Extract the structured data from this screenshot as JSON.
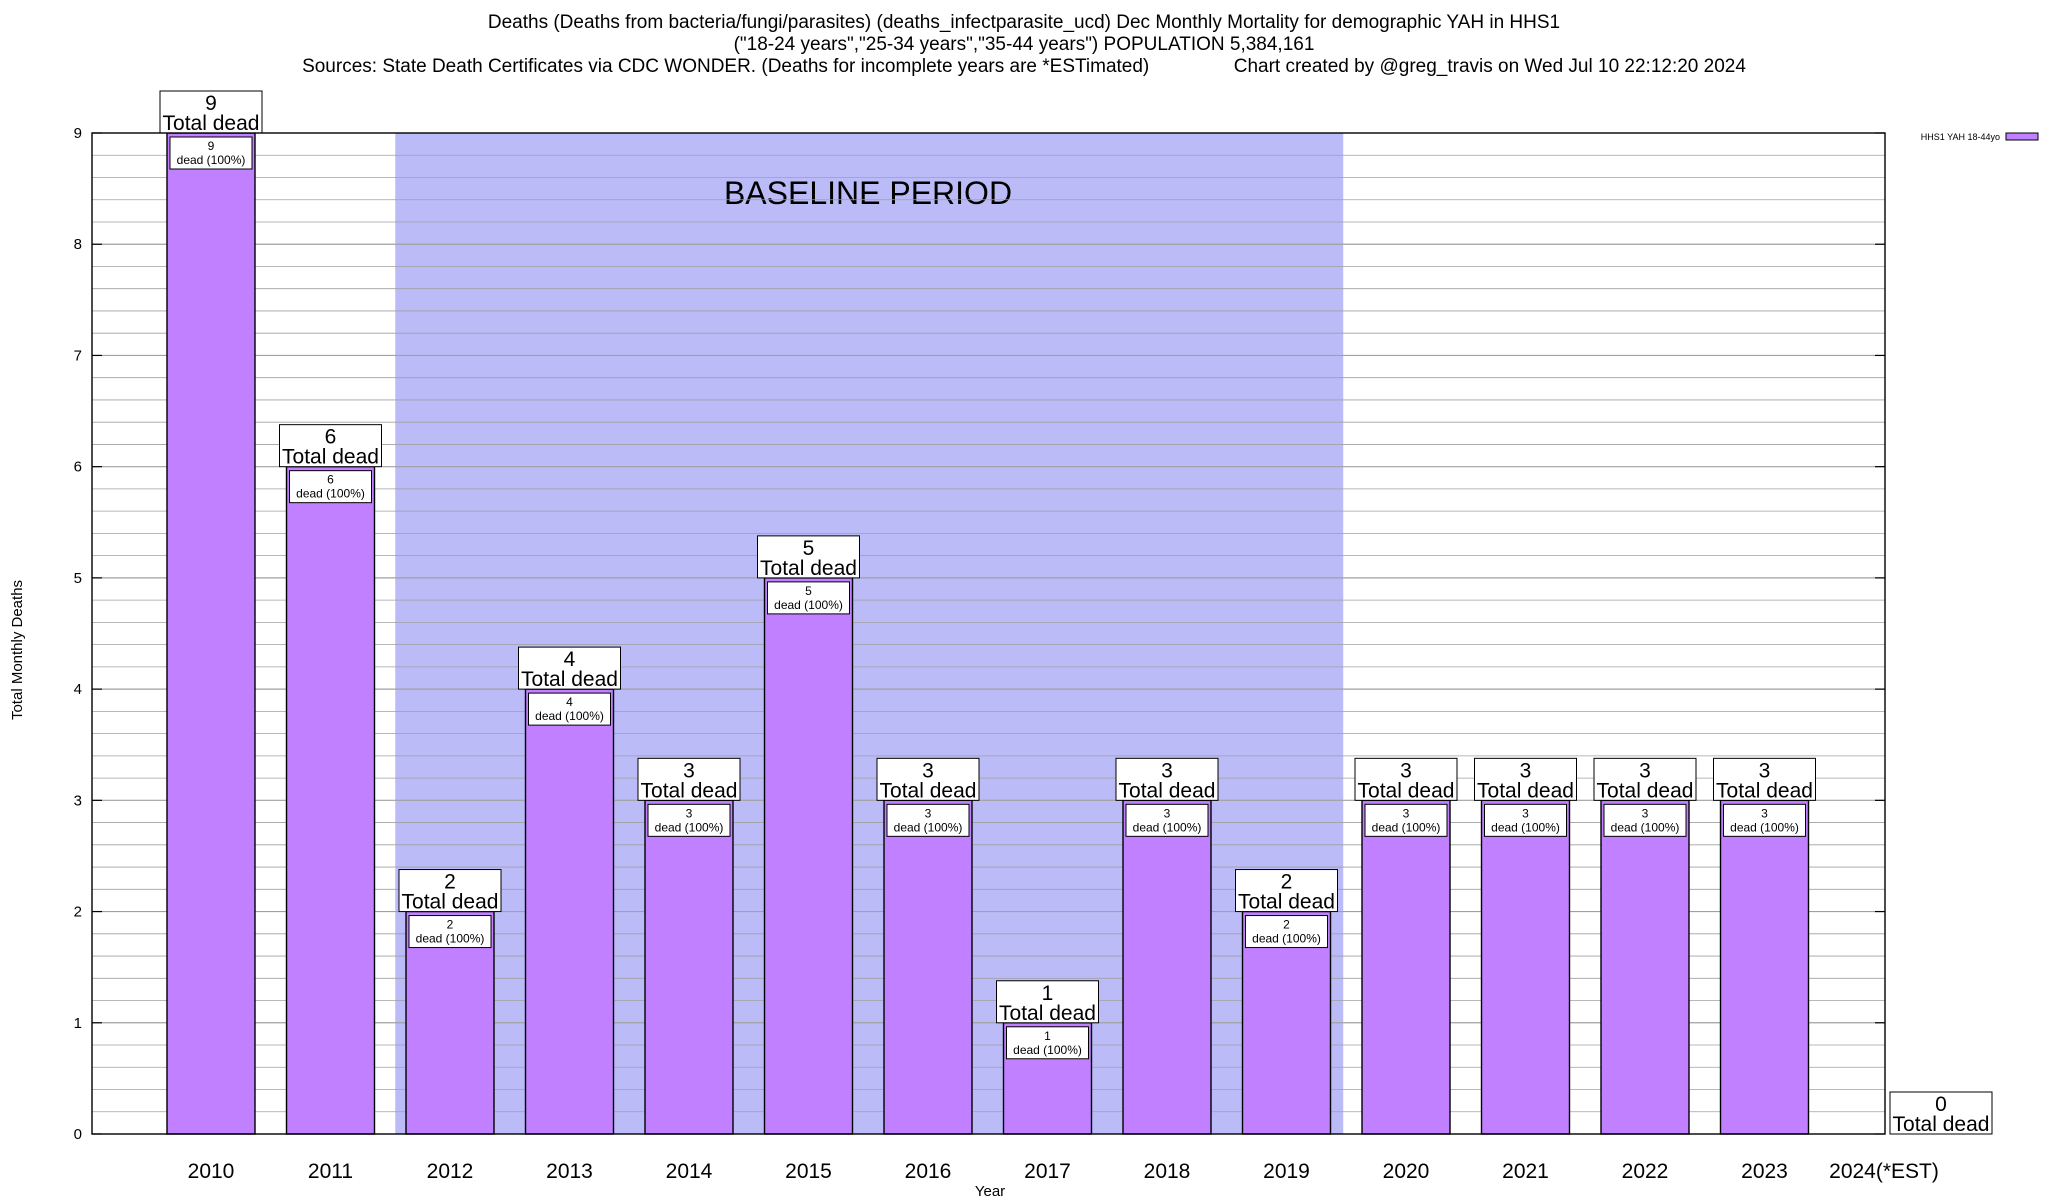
{
  "title_lines": [
    "Deaths (Deaths from bacteria/fungi/parasites) (deaths_infectparasite_ucd) Dec Monthly Mortality for demographic YAH in HHS1",
    "(\"18-24 years\",\"25-34 years\",\"35-44 years\") POPULATION 5,384,161",
    "Sources: State Death Certificates via CDC WONDER. (Deaths for incomplete years are *ESTimated)                Chart created by @greg_travis on Wed Jul 10 22:12:20 2024"
  ],
  "chart_data": {
    "type": "bar",
    "categories": [
      "2010",
      "2011",
      "2012",
      "2013",
      "2014",
      "2015",
      "2016",
      "2017",
      "2018",
      "2019",
      "2020",
      "2021",
      "2022",
      "2023",
      "2024(*EST)"
    ],
    "series": [
      {
        "name": "HHS1 YAH 18-44yo",
        "values": [
          9,
          6,
          2,
          4,
          3,
          5,
          3,
          1,
          3,
          2,
          3,
          3,
          3,
          3,
          0
        ]
      }
    ],
    "top_labels": [
      [
        "9",
        "Total dead"
      ],
      [
        "6",
        "Total dead"
      ],
      [
        "2",
        "Total dead"
      ],
      [
        "4",
        "Total dead"
      ],
      [
        "3",
        "Total dead"
      ],
      [
        "5",
        "Total dead"
      ],
      [
        "3",
        "Total dead"
      ],
      [
        "1",
        "Total dead"
      ],
      [
        "3",
        "Total dead"
      ],
      [
        "2",
        "Total dead"
      ],
      [
        "3",
        "Total dead"
      ],
      [
        "3",
        "Total dead"
      ],
      [
        "3",
        "Total dead"
      ],
      [
        "3",
        "Total dead"
      ],
      [
        "0",
        "Total dead"
      ]
    ],
    "inner_labels": [
      [
        "9",
        "dead (100%)"
      ],
      [
        "6",
        "dead (100%)"
      ],
      [
        "2",
        "dead (100%)"
      ],
      [
        "4",
        "dead (100%)"
      ],
      [
        "3",
        "dead (100%)"
      ],
      [
        "5",
        "dead (100%)"
      ],
      [
        "3",
        "dead (100%)"
      ],
      [
        "1",
        "dead (100%)"
      ],
      [
        "3",
        "dead (100%)"
      ],
      [
        "2",
        "dead (100%)"
      ],
      [
        "3",
        "dead (100%)"
      ],
      [
        "3",
        "dead (100%)"
      ],
      [
        "3",
        "dead (100%)"
      ],
      [
        "3",
        "dead (100%)"
      ],
      null
    ],
    "xlabel": "Year",
    "ylabel": "Total Monthly Deaths",
    "ylim": [
      0,
      9
    ],
    "yticks": [
      "0",
      "1",
      "2",
      "3",
      "4",
      "5",
      "6",
      "7",
      "8",
      "9"
    ],
    "grid": true,
    "legend_position": "top-right",
    "baseline": {
      "label": "BASELINE PERIOD",
      "from": "2012",
      "to": "2019"
    },
    "colors": {
      "bar": "#c080ff",
      "baseline": "#bbbbf8",
      "grid": "#a0a0a0"
    }
  }
}
